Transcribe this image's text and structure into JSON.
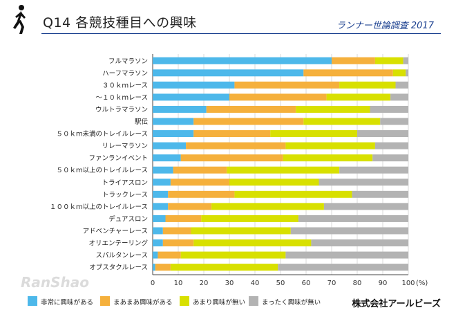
{
  "header": {
    "title": "Q14 各競技種目への興味",
    "survey": "ランナー世論調査 2017",
    "company": "株式会社アールビーズ",
    "watermark": "RanShao"
  },
  "chart_data": {
    "type": "bar",
    "orientation": "horizontal",
    "stacked": true,
    "title": "Q14 各競技種目への興味",
    "xlabel": "(%)",
    "xlim": [
      0,
      100
    ],
    "xticks": [
      0,
      10,
      20,
      30,
      40,
      50,
      60,
      70,
      80,
      90,
      100
    ],
    "unit_suffix": "(%)",
    "legend_position": "bottom",
    "categories": [
      "フルマラソン",
      "ハーフマラソン",
      "３０ｋｍレース",
      "～１０ｋｍレース",
      "ウルトラマラソン",
      "駅伝",
      "５０ｋｍ未満のトレイルレース",
      "リレーマラソン",
      "ファンランイベント",
      "５０ｋｍ以上のトレイルレース",
      "トライアスロン",
      "トラックレース",
      "１００ｋｍ以上のトレイルレース",
      "デュアスロン",
      "アドベンチャーレース",
      "オリエンテーリング",
      "スパルタンレース",
      "オブスタクルレース"
    ],
    "series": [
      {
        "name": "非常に興味がある",
        "color": "#4db8ea",
        "values": [
          70,
          59,
          32,
          30,
          21,
          16,
          16,
          13,
          11,
          8,
          7,
          6,
          6,
          5,
          4,
          4,
          2,
          1
        ]
      },
      {
        "name": "まあまあ興味がある",
        "color": "#f5b03c",
        "values": [
          17,
          35,
          41,
          38,
          35,
          43,
          30,
          39,
          40,
          21,
          23,
          26,
          17,
          14,
          11,
          12,
          9,
          6
        ]
      },
      {
        "name": "あまり興味が無い",
        "color": "#d8e000",
        "values": [
          11,
          5,
          22,
          25,
          29,
          30,
          34,
          35,
          35,
          44,
          35,
          46,
          44,
          38,
          39,
          46,
          41,
          42
        ]
      },
      {
        "name": "まったく興味が無い",
        "color": "#b3b3b3",
        "values": [
          2,
          1,
          5,
          7,
          15,
          11,
          20,
          13,
          14,
          27,
          35,
          22,
          33,
          43,
          46,
          38,
          48,
          51
        ]
      }
    ]
  }
}
